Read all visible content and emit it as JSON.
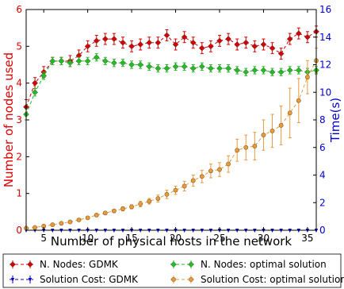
{
  "chart_data": {
    "type": "line",
    "title": "",
    "xlabel": "Number of physical hosts in the network",
    "ylabel_left": "Number of nodes used",
    "ylabel_right": "Time(s)",
    "xlim": [
      3,
      36
    ],
    "ylim_left": [
      0,
      6
    ],
    "ylim_right": [
      0,
      16
    ],
    "x_ticks": [
      5,
      10,
      15,
      20,
      25,
      30,
      35
    ],
    "y_left_ticks": [
      0,
      1,
      2,
      3,
      4,
      5,
      6
    ],
    "y_right_ticks": [
      0,
      2,
      4,
      6,
      8,
      10,
      12,
      14,
      16
    ],
    "left_axis_color": "#e00000",
    "right_axis_color": "#0000cc",
    "legend_location": "bottom, below plot",
    "grid": false,
    "x": [
      3,
      4,
      5,
      6,
      7,
      8,
      9,
      10,
      11,
      12,
      13,
      14,
      15,
      16,
      17,
      18,
      19,
      20,
      21,
      22,
      23,
      24,
      25,
      26,
      27,
      28,
      29,
      30,
      31,
      32,
      33,
      34,
      35,
      36
    ],
    "series": [
      {
        "name": "N. Nodes: GDMK",
        "axis": "left",
        "color": "#d40000",
        "marker": "diamond",
        "values": [
          3.35,
          4.0,
          4.3,
          4.6,
          4.6,
          4.6,
          4.75,
          5.0,
          5.15,
          5.2,
          5.2,
          5.1,
          5.0,
          5.05,
          5.1,
          5.1,
          5.3,
          5.05,
          5.25,
          5.1,
          4.95,
          5.0,
          5.15,
          5.2,
          5.05,
          5.1,
          5.0,
          5.05,
          4.95,
          4.8,
          5.2,
          5.35,
          5.25,
          5.4
        ],
        "errors": [
          0.2,
          0.15,
          0.15,
          0.1,
          0.1,
          0.15,
          0.15,
          0.15,
          0.15,
          0.15,
          0.15,
          0.15,
          0.15,
          0.15,
          0.15,
          0.15,
          0.15,
          0.15,
          0.15,
          0.15,
          0.15,
          0.15,
          0.15,
          0.15,
          0.15,
          0.15,
          0.15,
          0.15,
          0.15,
          0.15,
          0.15,
          0.15,
          0.15,
          0.15
        ]
      },
      {
        "name": "N. Nodes: optimal solution",
        "axis": "left",
        "color": "#22bb22",
        "marker": "diamond",
        "values": [
          3.15,
          3.75,
          4.2,
          4.6,
          4.6,
          4.55,
          4.6,
          4.6,
          4.7,
          4.6,
          4.55,
          4.55,
          4.5,
          4.5,
          4.45,
          4.4,
          4.4,
          4.45,
          4.45,
          4.4,
          4.45,
          4.4,
          4.4,
          4.4,
          4.35,
          4.3,
          4.35,
          4.35,
          4.3,
          4.3,
          4.35,
          4.35,
          4.3,
          4.35
        ],
        "errors": [
          0.15,
          0.1,
          0.1,
          0.1,
          0.1,
          0.1,
          0.1,
          0.1,
          0.1,
          0.1,
          0.1,
          0.1,
          0.1,
          0.1,
          0.1,
          0.1,
          0.1,
          0.1,
          0.1,
          0.1,
          0.1,
          0.1,
          0.1,
          0.1,
          0.1,
          0.1,
          0.1,
          0.1,
          0.1,
          0.1,
          0.1,
          0.1,
          0.1,
          0.1
        ]
      },
      {
        "name": "Solution Cost: GDMK",
        "axis": "right",
        "color": "#0000cc",
        "marker": "tri",
        "values": [
          0,
          0,
          0,
          0,
          0,
          0,
          0,
          0,
          0,
          0,
          0,
          0,
          0,
          0,
          0,
          0,
          0,
          0,
          0,
          0,
          0,
          0,
          0,
          0,
          0,
          0,
          0,
          0,
          0,
          0,
          0,
          0,
          0,
          0
        ],
        "errors": [
          0,
          0,
          0,
          0,
          0,
          0,
          0,
          0,
          0,
          0,
          0,
          0,
          0,
          0,
          0,
          0,
          0,
          0,
          0,
          0,
          0,
          0,
          0,
          0,
          0,
          0,
          0,
          0,
          0,
          0,
          0,
          0,
          0,
          0
        ]
      },
      {
        "name": "Solution Cost: optimal solution",
        "axis": "right",
        "color": "#e89a3c",
        "marker": "circle",
        "values": [
          0.15,
          0.2,
          0.3,
          0.4,
          0.5,
          0.6,
          0.75,
          0.9,
          1.1,
          1.25,
          1.4,
          1.55,
          1.7,
          1.9,
          2.1,
          2.3,
          2.6,
          2.9,
          3.2,
          3.6,
          3.9,
          4.3,
          4.4,
          4.8,
          5.8,
          6.0,
          6.1,
          6.9,
          7.2,
          7.6,
          8.5,
          9.4,
          11.1,
          12.3
        ],
        "errors": [
          0.05,
          0.05,
          0.05,
          0.05,
          0.05,
          0.1,
          0.1,
          0.1,
          0.1,
          0.1,
          0.1,
          0.15,
          0.15,
          0.2,
          0.2,
          0.25,
          0.3,
          0.3,
          0.35,
          0.4,
          0.45,
          0.5,
          0.5,
          0.6,
          0.8,
          0.9,
          1.0,
          1.1,
          1.2,
          1.4,
          1.8,
          1.6,
          1.2,
          0.9
        ]
      }
    ],
    "legend": {
      "items": [
        {
          "label": "N. Nodes: GDMK",
          "color": "#d40000",
          "marker": "diamond"
        },
        {
          "label": "N. Nodes: optimal solution",
          "color": "#22bb22",
          "marker": "diamond"
        },
        {
          "label": "Solution Cost: GDMK",
          "color": "#0000cc",
          "marker": "tri"
        },
        {
          "label": "Solution Cost: optimal solution",
          "color": "#e89a3c",
          "marker": "circle"
        }
      ]
    }
  }
}
